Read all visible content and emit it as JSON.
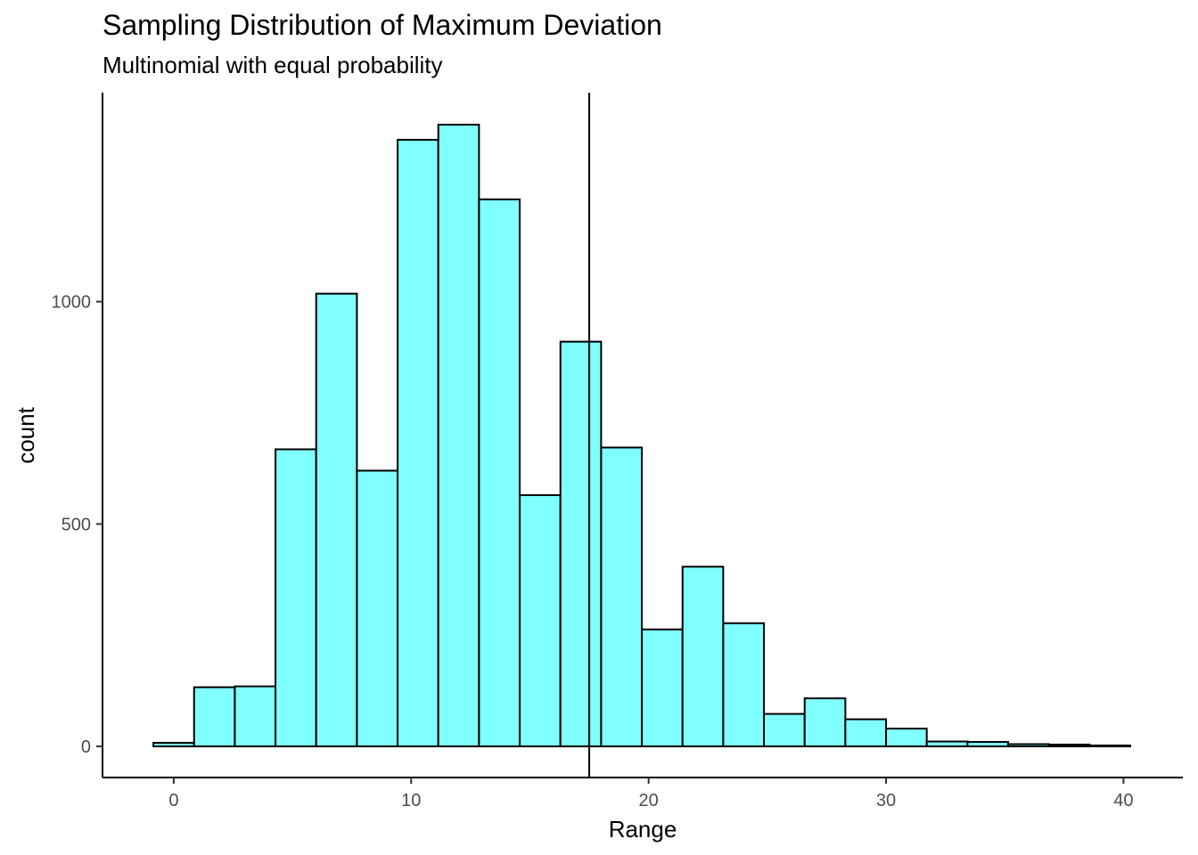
{
  "chart_data": {
    "type": "bar",
    "title": "Sampling Distribution of Maximum Deviation",
    "subtitle": "Multinomial with equal probability",
    "xlabel": "Range",
    "ylabel": "count",
    "xlim": [
      -3,
      42.5
    ],
    "ylim": [
      -70,
      1470
    ],
    "x_ticks": [
      0,
      10,
      20,
      30,
      40
    ],
    "y_ticks": [
      0,
      500,
      1000
    ],
    "bin_width": 1.714,
    "bins": [
      {
        "x": 0.0,
        "count": 8
      },
      {
        "x": 1.714,
        "count": 133
      },
      {
        "x": 3.429,
        "count": 135
      },
      {
        "x": 5.143,
        "count": 668
      },
      {
        "x": 6.857,
        "count": 1018
      },
      {
        "x": 8.571,
        "count": 620
      },
      {
        "x": 10.286,
        "count": 1364
      },
      {
        "x": 12.0,
        "count": 1398
      },
      {
        "x": 13.714,
        "count": 1230
      },
      {
        "x": 15.429,
        "count": 565
      },
      {
        "x": 17.143,
        "count": 910
      },
      {
        "x": 18.857,
        "count": 672
      },
      {
        "x": 20.571,
        "count": 263
      },
      {
        "x": 22.286,
        "count": 404
      },
      {
        "x": 24.0,
        "count": 277
      },
      {
        "x": 25.714,
        "count": 73
      },
      {
        "x": 27.429,
        "count": 108
      },
      {
        "x": 29.143,
        "count": 61
      },
      {
        "x": 30.857,
        "count": 40
      },
      {
        "x": 32.571,
        "count": 11
      },
      {
        "x": 34.286,
        "count": 10
      },
      {
        "x": 36.0,
        "count": 5
      },
      {
        "x": 37.714,
        "count": 4
      },
      {
        "x": 39.429,
        "count": 2
      },
      {
        "x": 41.143,
        "count": 0
      }
    ],
    "vline_x": 17.5,
    "bar_fill": "#80FFFF",
    "bar_stroke": "#000000",
    "grid": false,
    "legend": "none"
  }
}
